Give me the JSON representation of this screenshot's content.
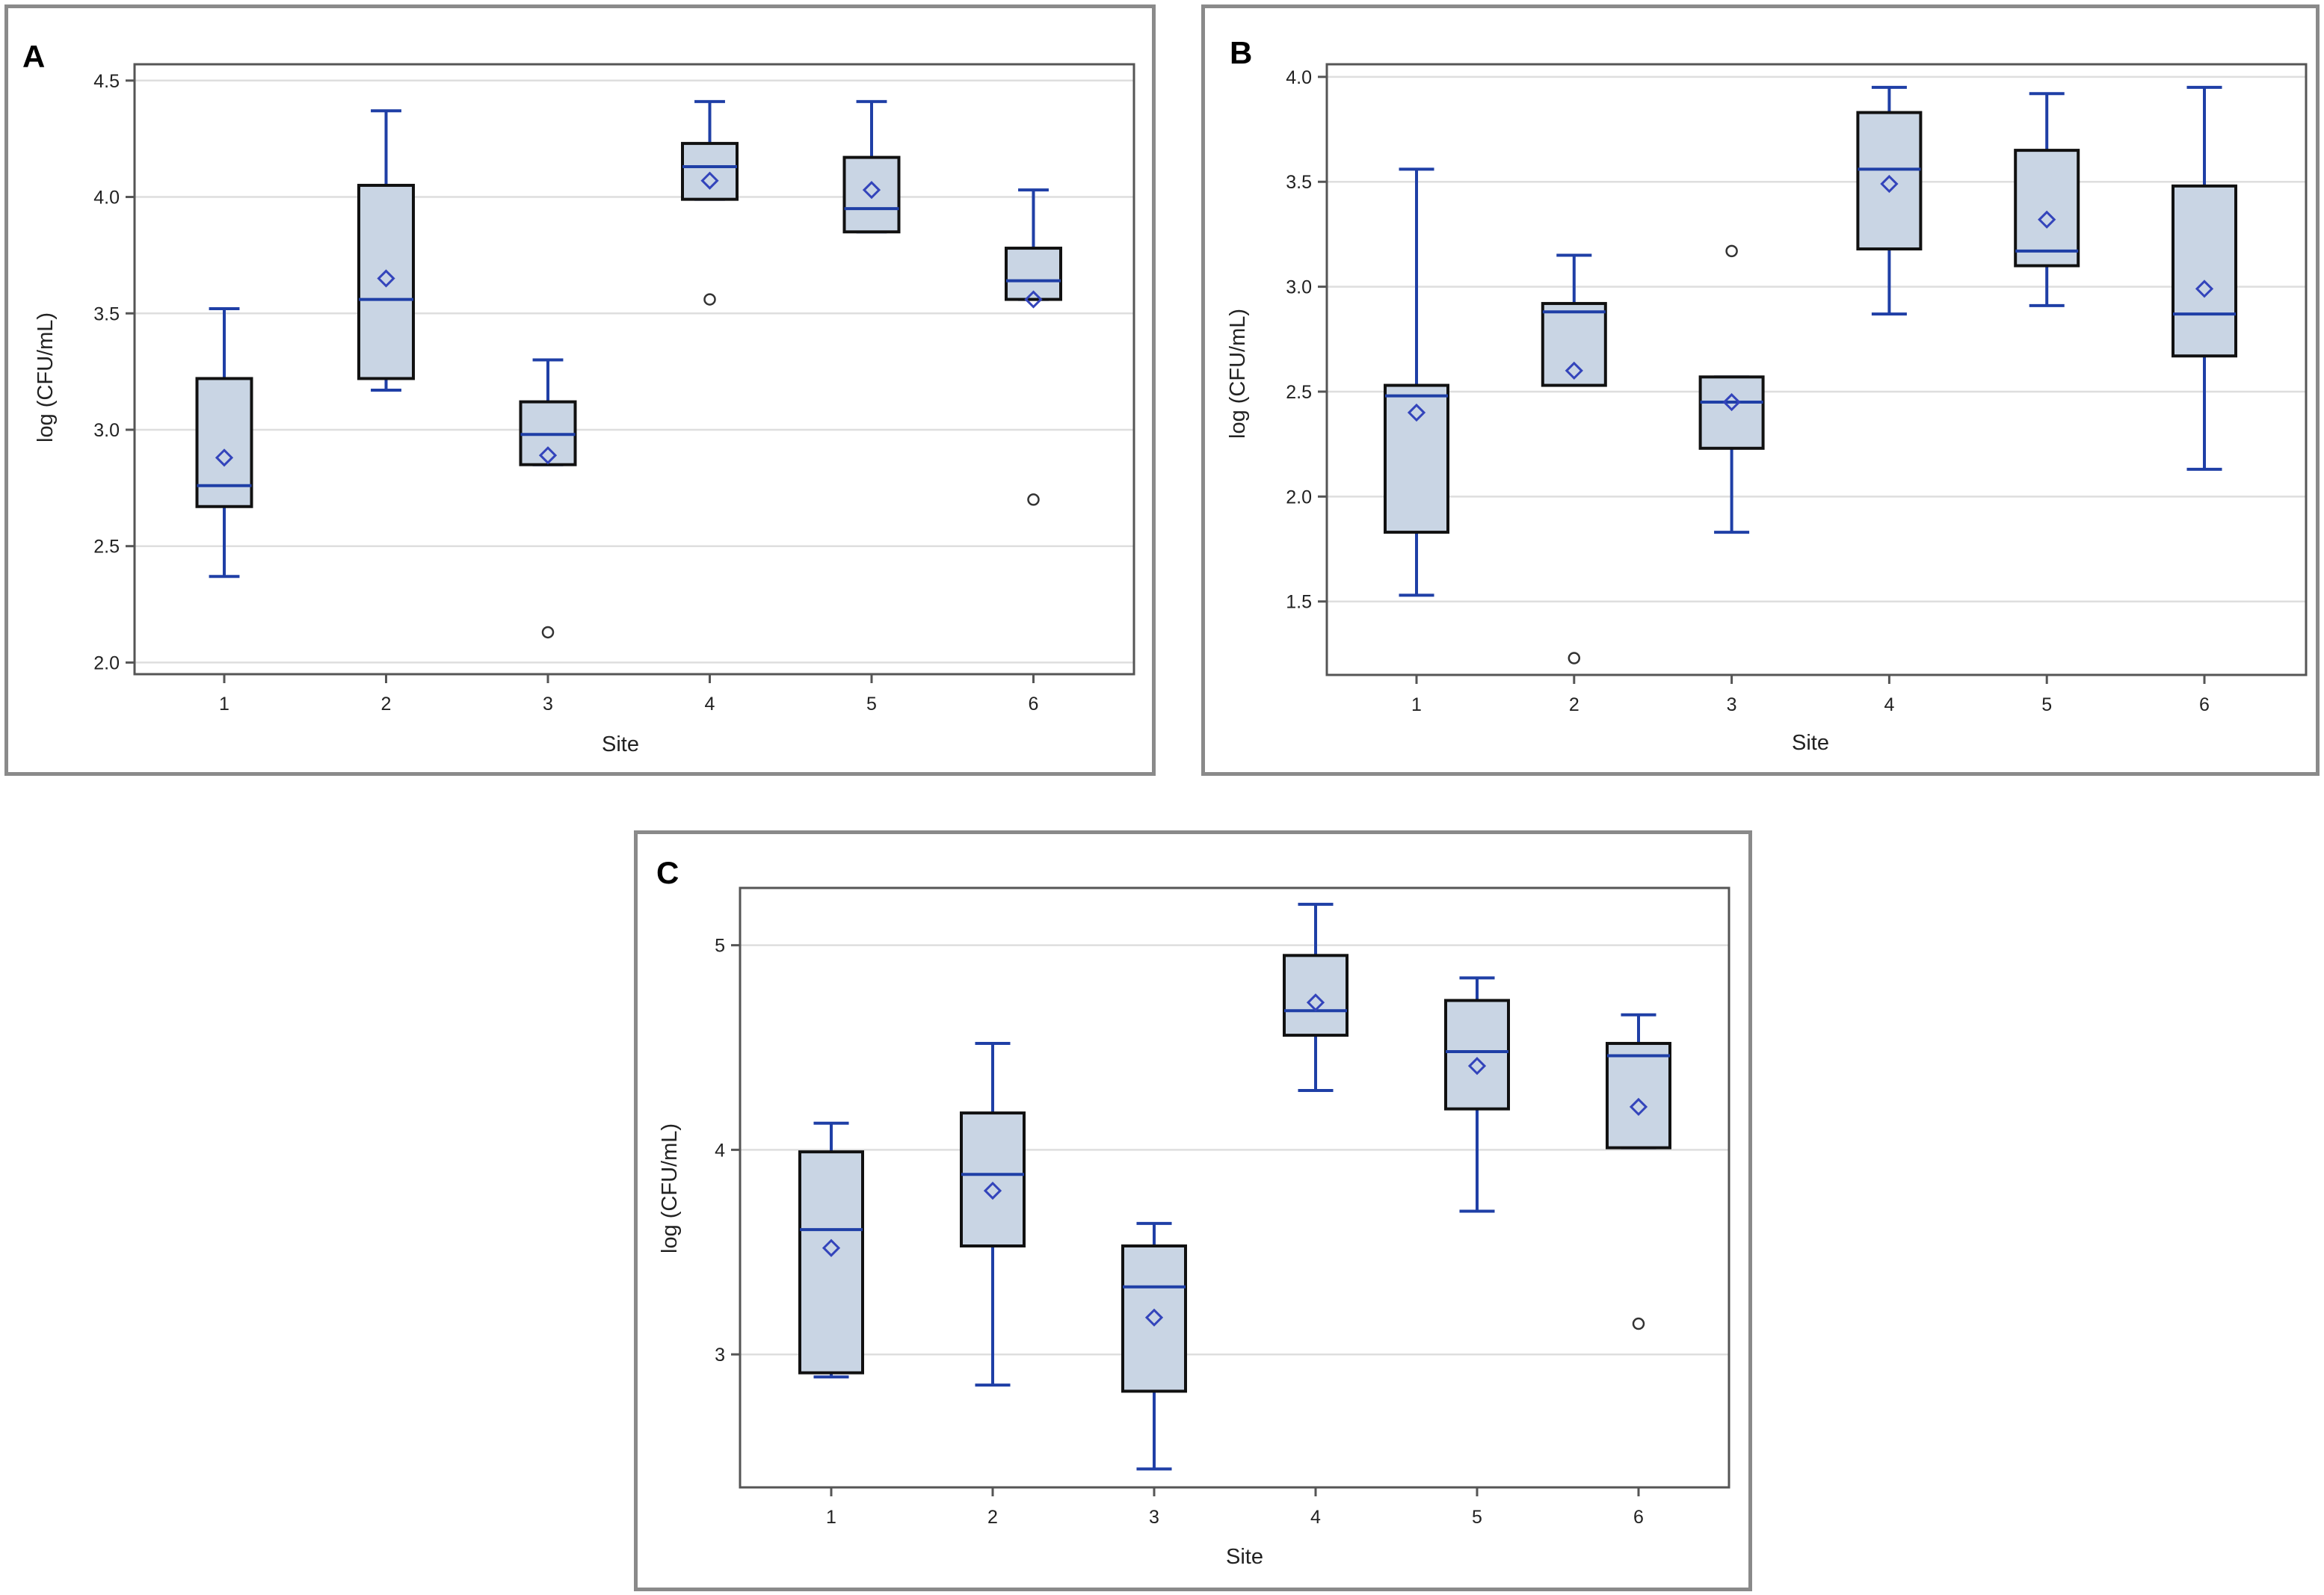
{
  "chart_data": [
    {
      "type": "box",
      "panel": "A",
      "xlabel": "Site",
      "ylabel": "log (CFU/mL)",
      "ylim": [
        1.95,
        4.57
      ],
      "yticks": [
        "2.0",
        "2.5",
        "3.0",
        "3.5",
        "4.0",
        "4.5"
      ],
      "categories": [
        "1",
        "2",
        "3",
        "4",
        "5",
        "6"
      ],
      "boxes": [
        {
          "site": "1",
          "min": 2.37,
          "q1": 2.67,
          "median": 2.76,
          "q3": 3.22,
          "max": 3.52,
          "mean": 2.88,
          "outliers": []
        },
        {
          "site": "2",
          "min": 3.17,
          "q1": 3.22,
          "median": 3.56,
          "q3": 4.05,
          "max": 4.37,
          "mean": 3.65,
          "outliers": []
        },
        {
          "site": "3",
          "min": 2.85,
          "q1": 2.85,
          "median": 2.98,
          "q3": 3.12,
          "max": 3.3,
          "mean": 2.89,
          "outliers": [
            2.13
          ]
        },
        {
          "site": "4",
          "min": 3.99,
          "q1": 3.99,
          "median": 4.13,
          "q3": 4.23,
          "max": 4.41,
          "mean": 4.07,
          "outliers": [
            3.56
          ]
        },
        {
          "site": "5",
          "min": 3.85,
          "q1": 3.85,
          "median": 3.95,
          "q3": 4.17,
          "max": 4.41,
          "mean": 4.03,
          "outliers": []
        },
        {
          "site": "6",
          "min": 3.56,
          "q1": 3.56,
          "median": 3.64,
          "q3": 3.78,
          "max": 4.03,
          "mean": 3.56,
          "outliers": [
            2.7
          ]
        }
      ]
    },
    {
      "type": "box",
      "panel": "B",
      "xlabel": "Site",
      "ylabel": "log (CFU/mL)",
      "ylim": [
        1.15,
        4.06
      ],
      "yticks": [
        "1.5",
        "2.0",
        "2.5",
        "3.0",
        "3.5",
        "4.0"
      ],
      "categories": [
        "1",
        "2",
        "3",
        "4",
        "5",
        "6"
      ],
      "boxes": [
        {
          "site": "1",
          "min": 1.53,
          "q1": 1.83,
          "median": 2.48,
          "q3": 2.53,
          "max": 3.56,
          "mean": 2.4,
          "outliers": []
        },
        {
          "site": "2",
          "min": 2.53,
          "q1": 2.53,
          "median": 2.88,
          "q3": 2.92,
          "max": 3.15,
          "mean": 2.6,
          "outliers": [
            1.23
          ]
        },
        {
          "site": "3",
          "min": 1.83,
          "q1": 2.23,
          "median": 2.45,
          "q3": 2.57,
          "max": 2.57,
          "mean": 2.45,
          "outliers": [
            3.17
          ]
        },
        {
          "site": "4",
          "min": 2.87,
          "q1": 3.18,
          "median": 3.56,
          "q3": 3.83,
          "max": 3.95,
          "mean": 3.49,
          "outliers": []
        },
        {
          "site": "5",
          "min": 2.91,
          "q1": 3.1,
          "median": 3.17,
          "q3": 3.65,
          "max": 3.92,
          "mean": 3.32,
          "outliers": []
        },
        {
          "site": "6",
          "min": 2.13,
          "q1": 2.67,
          "median": 2.87,
          "q3": 3.48,
          "max": 3.95,
          "mean": 2.99,
          "outliers": []
        }
      ]
    },
    {
      "type": "box",
      "panel": "C",
      "xlabel": "Site",
      "ylabel": "log (CFU/mL)",
      "ylim": [
        2.35,
        5.28
      ],
      "yticks": [
        "3",
        "4",
        "5"
      ],
      "categories": [
        "1",
        "2",
        "3",
        "4",
        "5",
        "6"
      ],
      "boxes": [
        {
          "site": "1",
          "min": 2.89,
          "q1": 2.91,
          "median": 3.61,
          "q3": 3.99,
          "max": 4.13,
          "mean": 3.52,
          "outliers": []
        },
        {
          "site": "2",
          "min": 2.85,
          "q1": 3.53,
          "median": 3.88,
          "q3": 4.18,
          "max": 4.52,
          "mean": 3.8,
          "outliers": []
        },
        {
          "site": "3",
          "min": 2.44,
          "q1": 2.82,
          "median": 3.33,
          "q3": 3.53,
          "max": 3.64,
          "mean": 3.18,
          "outliers": []
        },
        {
          "site": "4",
          "min": 4.29,
          "q1": 4.56,
          "median": 4.68,
          "q3": 4.95,
          "max": 5.2,
          "mean": 4.72,
          "outliers": []
        },
        {
          "site": "5",
          "min": 3.7,
          "q1": 4.2,
          "median": 4.48,
          "q3": 4.73,
          "max": 4.84,
          "mean": 4.41,
          "outliers": []
        },
        {
          "site": "6",
          "min": 4.01,
          "q1": 4.01,
          "median": 4.46,
          "q3": 4.52,
          "max": 4.66,
          "mean": 4.21,
          "outliers": [
            3.15
          ]
        }
      ]
    }
  ]
}
